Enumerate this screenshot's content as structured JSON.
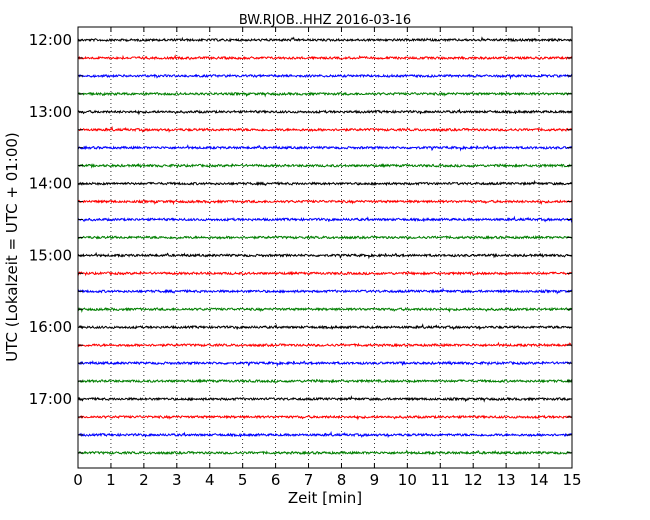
{
  "chart_data": {
    "type": "line",
    "title": "BW.RJOB..HHZ 2016-03-16",
    "xlabel": "Zeit  [min]",
    "ylabel": "UTC (Lokalzeit = UTC + 01:00)",
    "x_range": [
      0,
      15
    ],
    "x_ticks": [
      "0",
      "1",
      "2",
      "3",
      "4",
      "5",
      "6",
      "7",
      "8",
      "9",
      "10",
      "11",
      "12",
      "13",
      "14",
      "15"
    ],
    "y_tick_labels": [
      "12:00",
      "13:00",
      "14:00",
      "15:00",
      "16:00",
      "17:00"
    ],
    "grid": "vertical dotted at each minute",
    "legend": "none",
    "trace_interval_min": 15,
    "trace_colors": [
      "#000000",
      "#ff0000",
      "#0000ff",
      "#007f00"
    ],
    "series": [
      {
        "start": "12:00",
        "color": "#000000"
      },
      {
        "start": "12:15",
        "color": "#ff0000"
      },
      {
        "start": "12:30",
        "color": "#0000ff"
      },
      {
        "start": "12:45",
        "color": "#007f00"
      },
      {
        "start": "13:00",
        "color": "#000000"
      },
      {
        "start": "13:15",
        "color": "#ff0000"
      },
      {
        "start": "13:30",
        "color": "#0000ff"
      },
      {
        "start": "13:45",
        "color": "#007f00"
      },
      {
        "start": "14:00",
        "color": "#000000"
      },
      {
        "start": "14:15",
        "color": "#ff0000"
      },
      {
        "start": "14:30",
        "color": "#0000ff"
      },
      {
        "start": "14:45",
        "color": "#007f00"
      },
      {
        "start": "15:00",
        "color": "#000000"
      },
      {
        "start": "15:15",
        "color": "#ff0000"
      },
      {
        "start": "15:30",
        "color": "#0000ff"
      },
      {
        "start": "15:45",
        "color": "#007f00"
      },
      {
        "start": "16:00",
        "color": "#000000"
      },
      {
        "start": "16:15",
        "color": "#ff0000"
      },
      {
        "start": "16:30",
        "color": "#0000ff"
      },
      {
        "start": "16:45",
        "color": "#007f00"
      },
      {
        "start": "17:00",
        "color": "#000000"
      },
      {
        "start": "17:15",
        "color": "#ff0000"
      },
      {
        "start": "17:30",
        "color": "#0000ff"
      },
      {
        "start": "17:45",
        "color": "#007f00"
      }
    ]
  }
}
